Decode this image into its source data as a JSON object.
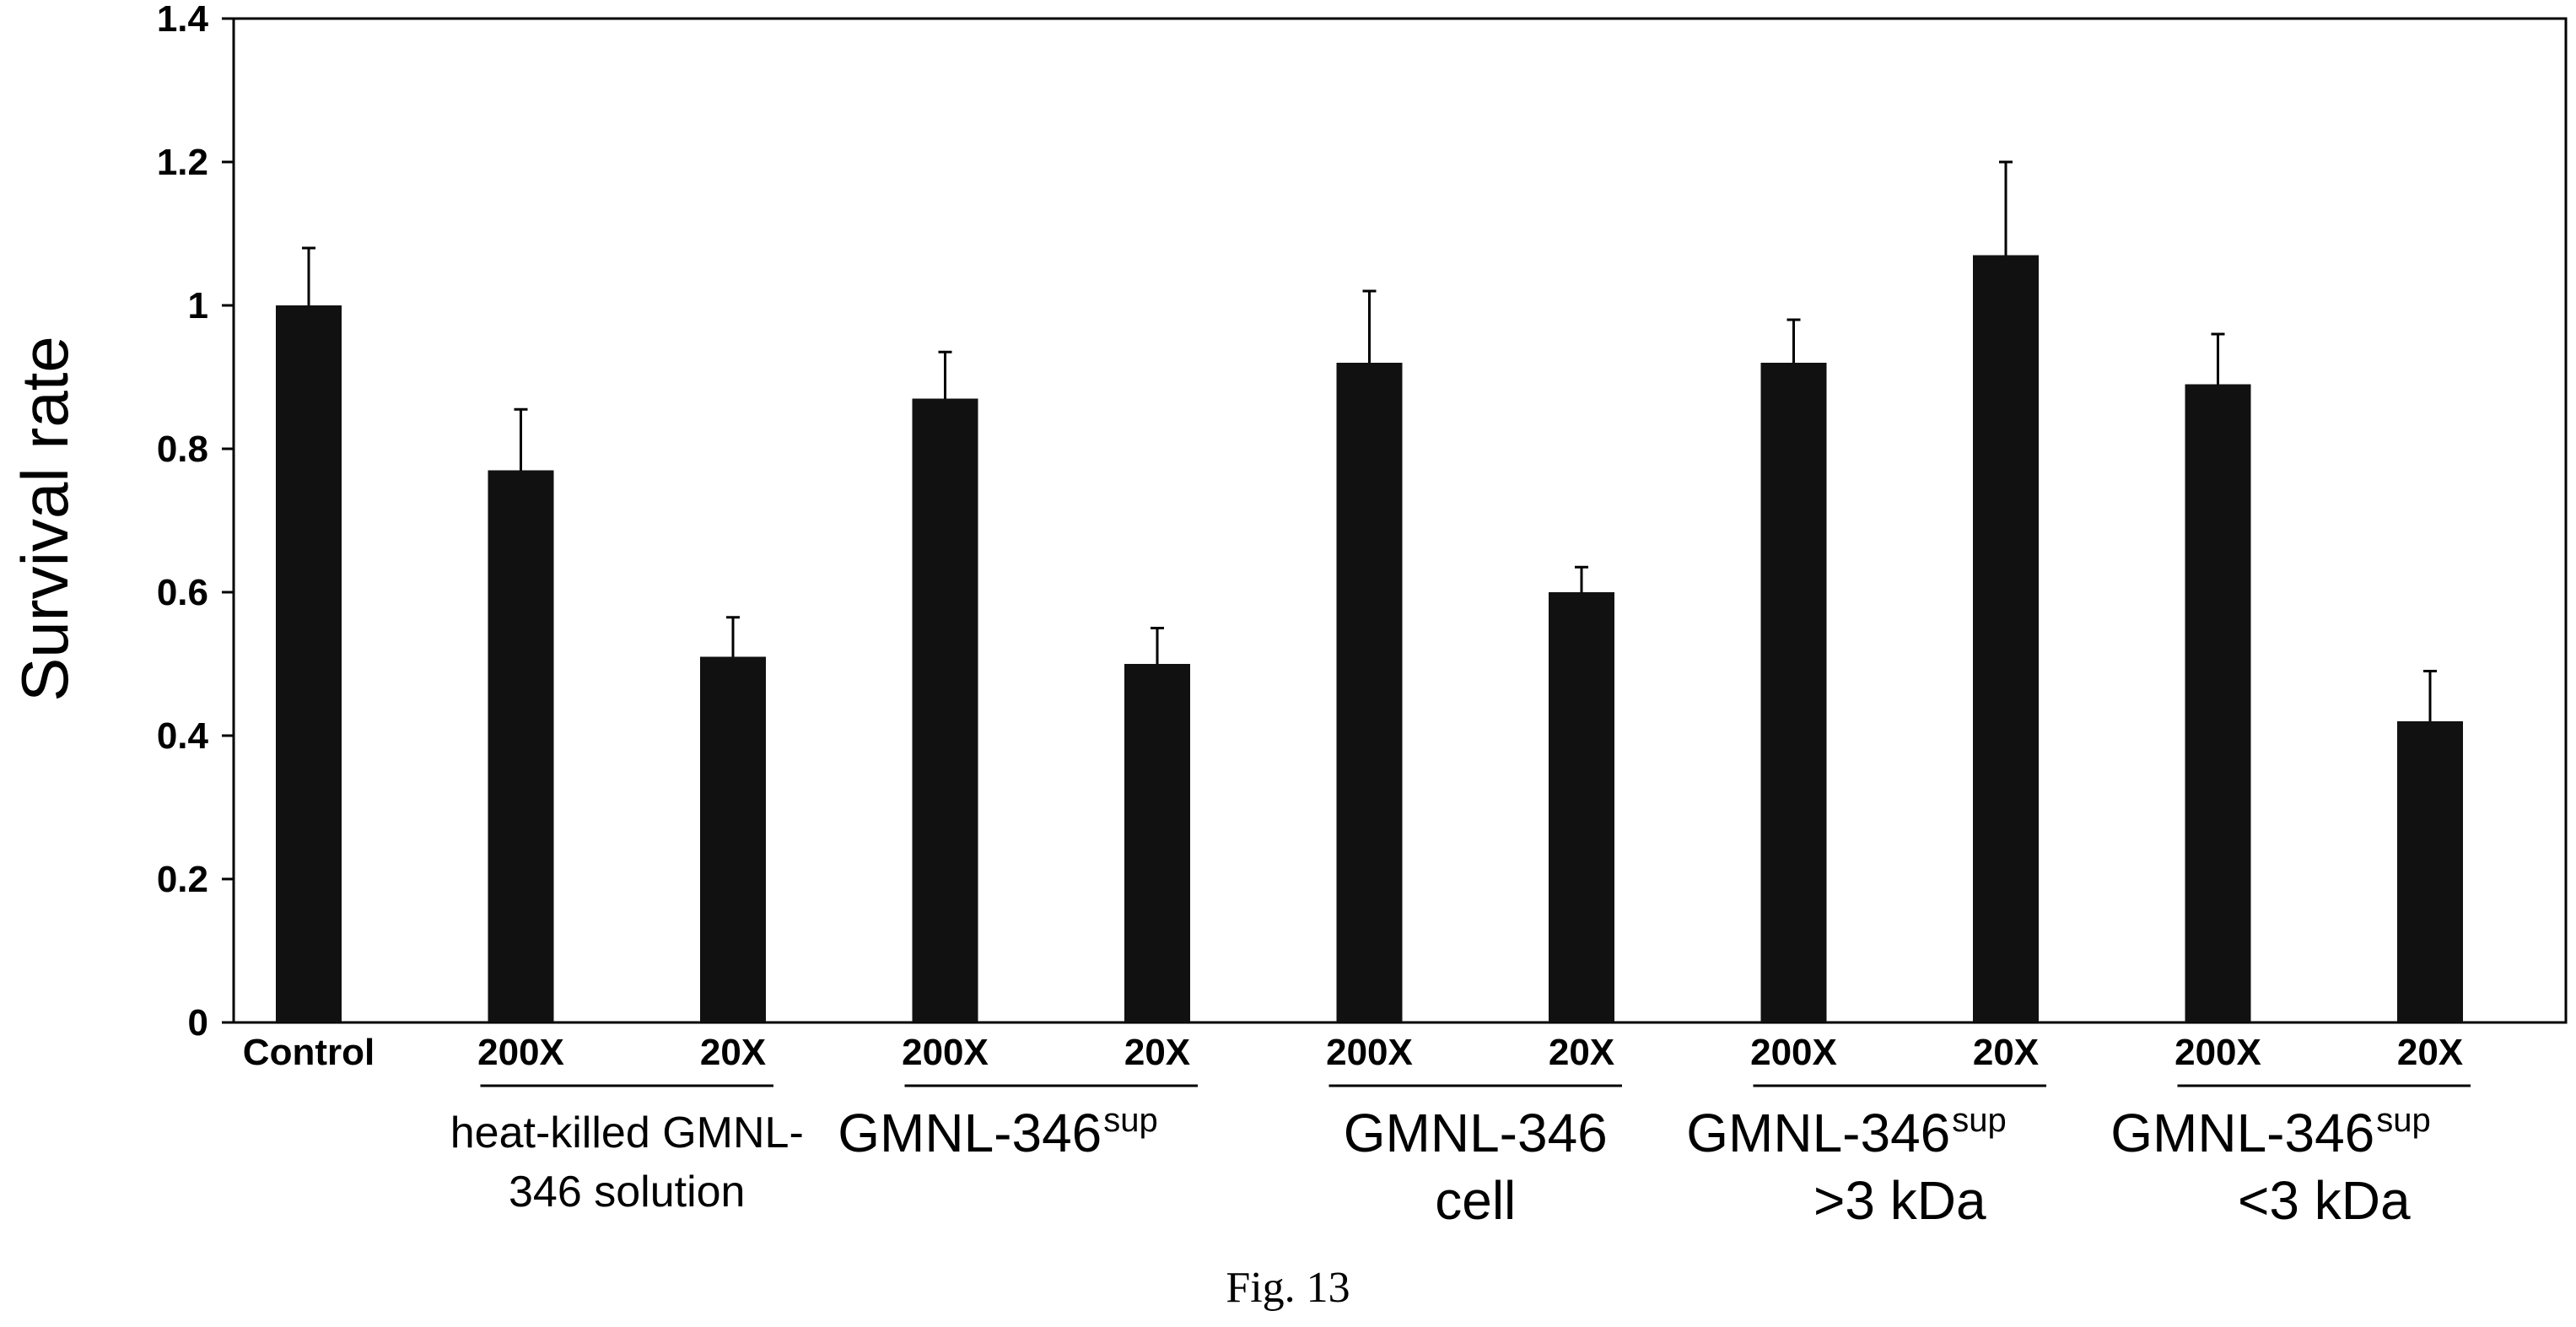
{
  "chart_data": {
    "type": "bar",
    "ylabel": "Survival rate",
    "ylim": [
      0,
      1.4
    ],
    "yticks": [
      "0",
      "0.2",
      "0.4",
      "0.6",
      "0.8",
      "1",
      "1.2",
      "1.4"
    ],
    "categories": [
      "Control",
      "200X",
      "20X",
      "200X",
      "20X",
      "200X",
      "20X",
      "200X",
      "20X",
      "200X",
      "20X"
    ],
    "values": [
      1.0,
      0.77,
      0.51,
      0.87,
      0.5,
      0.92,
      0.6,
      0.92,
      1.07,
      0.89,
      0.42
    ],
    "errors": [
      0.08,
      0.085,
      0.055,
      0.065,
      0.05,
      0.1,
      0.035,
      0.06,
      0.13,
      0.07,
      0.07
    ],
    "bar_color": "#111111",
    "groups": [
      {
        "lines": [
          "heat-killed GMNL-",
          "346 solution"
        ],
        "members": [
          1,
          2
        ]
      },
      {
        "lines": [
          "GMNL-346"
        ],
        "superscript": "sup",
        "members": [
          3,
          4
        ]
      },
      {
        "lines": [
          "GMNL-346",
          "cell"
        ],
        "members": [
          5,
          6
        ]
      },
      {
        "lines": [
          "GMNL-346",
          ">3 kDa"
        ],
        "superscript": "sup",
        "members": [
          7,
          8
        ]
      },
      {
        "lines": [
          "GMNL-346",
          "<3 kDa"
        ],
        "superscript": "sup",
        "members": [
          9,
          10
        ]
      }
    ]
  },
  "caption": "Fig. 13"
}
